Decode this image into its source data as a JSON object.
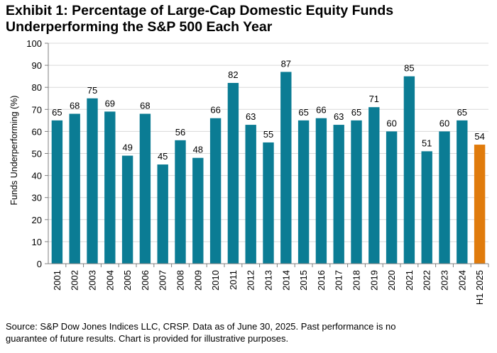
{
  "title": {
    "line1": "Exhibit 1: Percentage of Large-Cap Domestic Equity Funds",
    "line2": "Underperforming the S&P 500 Each Year"
  },
  "source": {
    "line1": "Source: S&P Dow Jones Indices LLC, CRSP.  Data as of June 30, 2025.  Past performance is no",
    "line2": "guarantee of future results.  Chart is provided for illustrative purposes."
  },
  "colors": {
    "bar": "#0b7c94",
    "highlight": "#e07b0c",
    "axis": "#7f7f7f",
    "grid": "#d9d9d9"
  },
  "chart_data": {
    "type": "bar",
    "title": "Exhibit 1: Percentage of Large-Cap Domestic Equity Funds Underperforming the S&P 500 Each Year",
    "xlabel": "",
    "ylabel": "Funds Underperforming (%)",
    "ylim": [
      0,
      100
    ],
    "yticks": [
      0,
      10,
      20,
      30,
      40,
      50,
      60,
      70,
      80,
      90,
      100
    ],
    "grid": true,
    "categories": [
      "2001",
      "2002",
      "2003",
      "2004",
      "2005",
      "2006",
      "2007",
      "2008",
      "2009",
      "2010",
      "2011",
      "2012",
      "2013",
      "2014",
      "2015",
      "2016",
      "2017",
      "2018",
      "2019",
      "2020",
      "2021",
      "2022",
      "2023",
      "2024",
      "H1 2025"
    ],
    "values": [
      65,
      68,
      75,
      69,
      49,
      68,
      45,
      56,
      48,
      66,
      82,
      63,
      55,
      87,
      65,
      66,
      63,
      65,
      71,
      60,
      85,
      51,
      60,
      65,
      54
    ],
    "highlight_category": "H1 2025"
  }
}
